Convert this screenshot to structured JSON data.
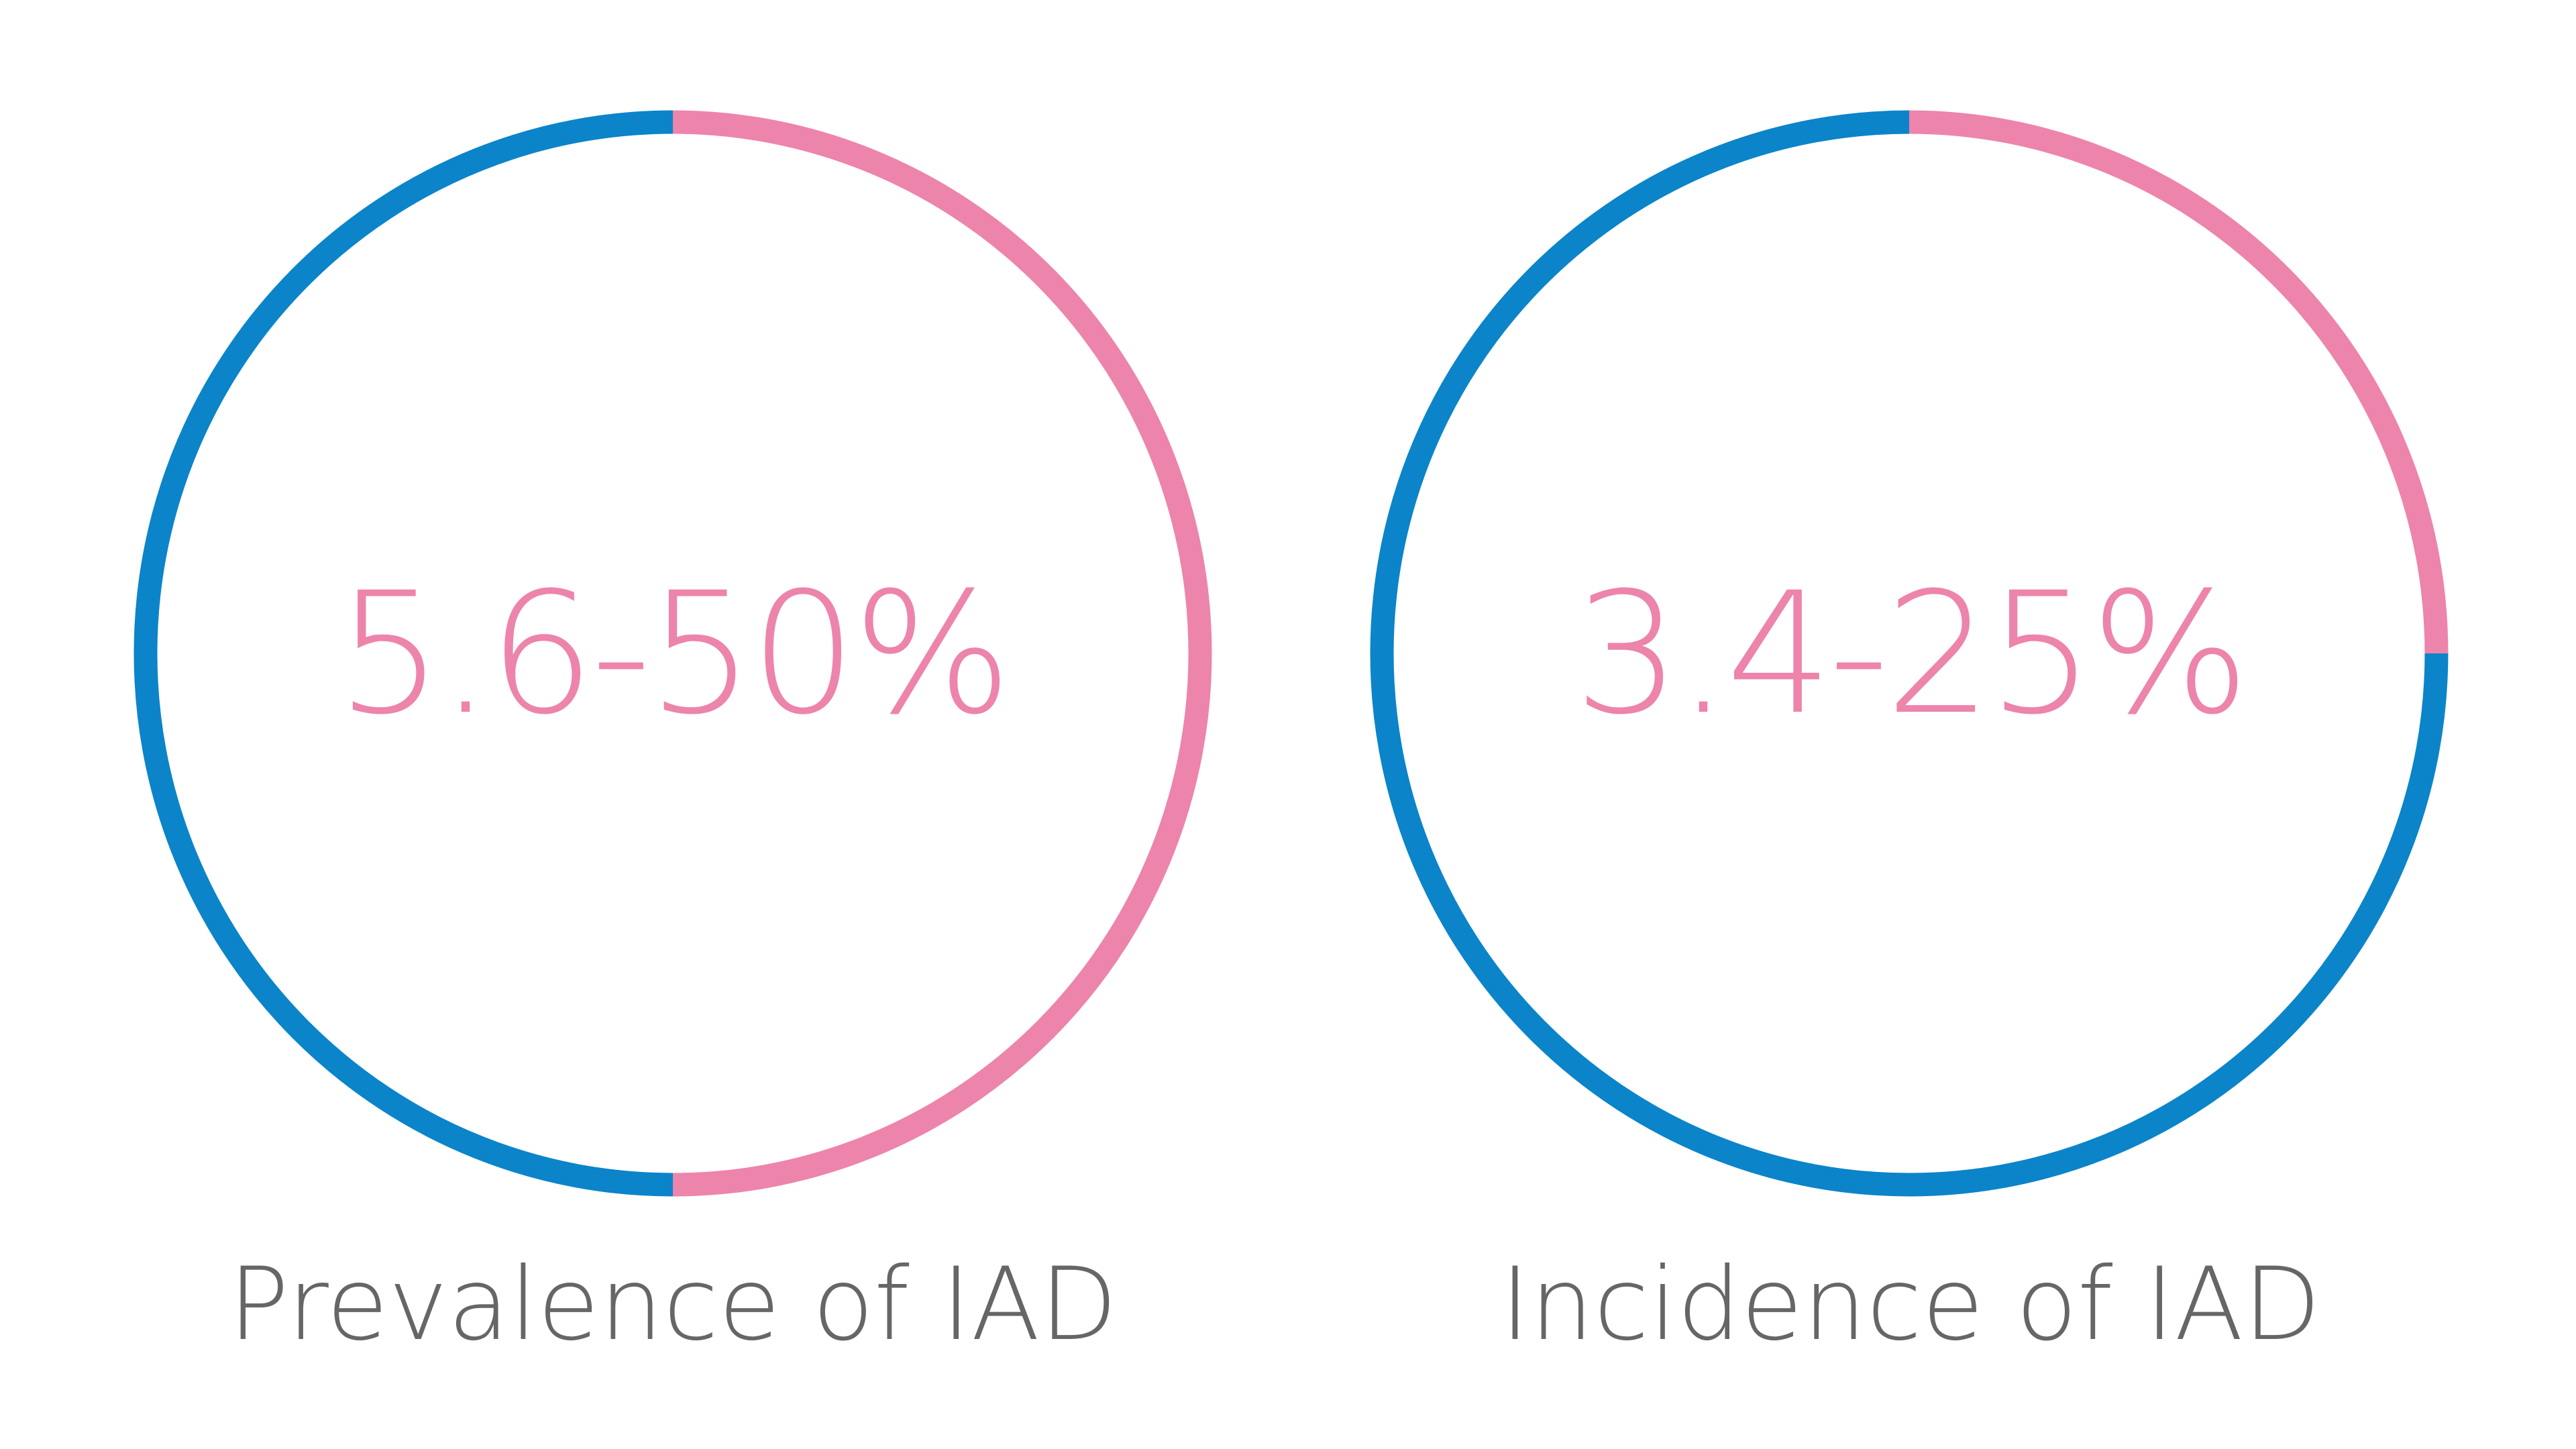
{
  "colors": {
    "pink": "#ED84AB",
    "blue": "#0B84C9",
    "caption": "#666666"
  },
  "chart_data": [
    {
      "type": "pie",
      "style": "ring",
      "value_label": "5.6-50%",
      "caption": "Prevalence of IAD",
      "range_percent": [
        5.6,
        50
      ],
      "highlight_fraction": 0.5,
      "segments": [
        {
          "color": "#ED84AB",
          "fraction": 0.5
        },
        {
          "color": "#0B84C9",
          "fraction": 0.5
        }
      ]
    },
    {
      "type": "pie",
      "style": "ring",
      "value_label": "3.4-25%",
      "caption": "Incidence of IAD",
      "range_percent": [
        3.4,
        25
      ],
      "highlight_fraction": 0.25,
      "segments": [
        {
          "color": "#ED84AB",
          "fraction": 0.25
        },
        {
          "color": "#0B84C9",
          "fraction": 0.75
        }
      ]
    }
  ]
}
